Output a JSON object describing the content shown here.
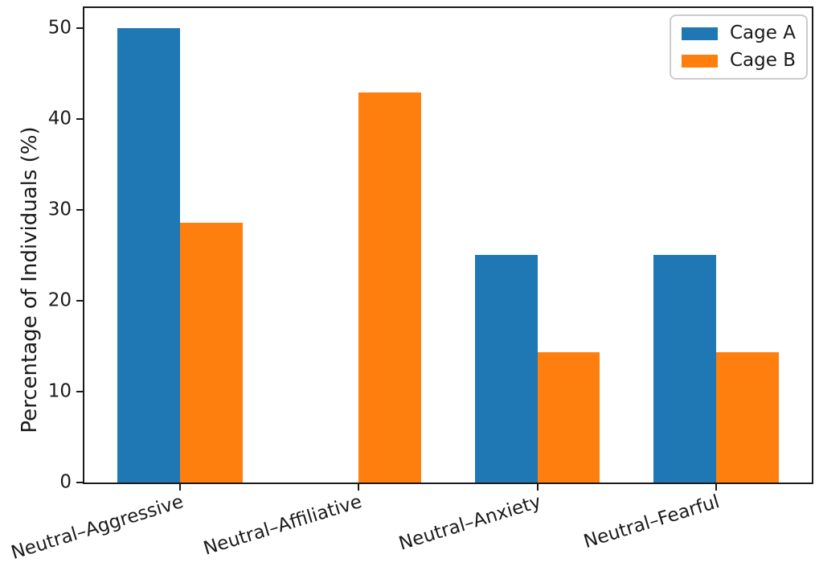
{
  "figure": {
    "background": "#ffffff",
    "axis_color": "#1a1a1a",
    "text_color": "#1a1a1a"
  },
  "chart_data": {
    "type": "bar",
    "title": "",
    "xlabel": "",
    "ylabel": "Percentage of Individuals (%)",
    "categories": [
      "Neutral–Aggressive",
      "Neutral–Affiliative",
      "Neutral–Anxiety",
      "Neutral–Fearful"
    ],
    "series": [
      {
        "name": "Cage A",
        "color": "#1f77b4",
        "values": [
          50,
          0,
          25,
          25
        ]
      },
      {
        "name": "Cage B",
        "color": "#ff7f0e",
        "values": [
          28.6,
          42.9,
          14.3,
          14.3
        ]
      }
    ],
    "yticks": [
      0,
      10,
      20,
      30,
      40,
      50
    ],
    "ylim": [
      0,
      52.2
    ],
    "xlim": [
      -0.535,
      3.535
    ],
    "bar_width": 0.35,
    "bar_offsets": [
      -0.175,
      0.175
    ],
    "grid": false,
    "x_tick_label_rotation_deg": -17,
    "legend": {
      "position": "upper right",
      "labels": [
        "Cage A",
        "Cage B"
      ]
    }
  }
}
